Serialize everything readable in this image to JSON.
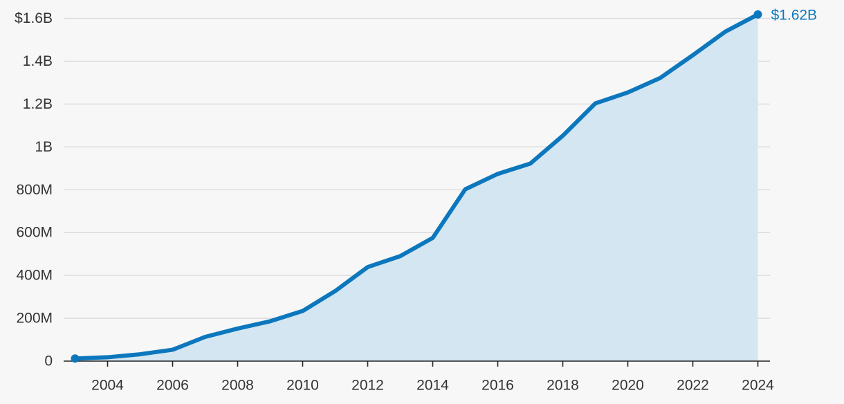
{
  "chart_data": {
    "type": "area",
    "title": "",
    "xlabel": "",
    "ylabel": "",
    "x": [
      2003,
      2004,
      2005,
      2006,
      2007,
      2008,
      2009,
      2010,
      2011,
      2012,
      2013,
      2014,
      2015,
      2016,
      2017,
      2018,
      2019,
      2020,
      2021,
      2022,
      2023,
      2024
    ],
    "series": [
      {
        "values": [
          12000000,
          18000000,
          32000000,
          53000000,
          113000000,
          152000000,
          186000000,
          234000000,
          327000000,
          439000000,
          490000000,
          575000000,
          802000000,
          874000000,
          922000000,
          1052000000,
          1203000000,
          1254000000,
          1322000000,
          1428000000,
          1538000000,
          1618000000
        ]
      }
    ],
    "xticks": [
      "2004",
      "2006",
      "2008",
      "2010",
      "2012",
      "2014",
      "2016",
      "2018",
      "2020",
      "2022",
      "2024"
    ],
    "yticks": [
      {
        "value": 0,
        "label": "0"
      },
      {
        "value": 200000000,
        "label": "200M"
      },
      {
        "value": 400000000,
        "label": "400M"
      },
      {
        "value": 600000000,
        "label": "600M"
      },
      {
        "value": 800000000,
        "label": "800M"
      },
      {
        "value": 1000000000,
        "label": "1B"
      },
      {
        "value": 1200000000,
        "label": "1.2B"
      },
      {
        "value": 1400000000,
        "label": "1.4B"
      },
      {
        "value": 1600000000,
        "label": "$1.6B"
      }
    ],
    "ylim": [
      0,
      1600000000
    ],
    "xlim": [
      2003,
      2024
    ],
    "grid": true,
    "end_label": "$1.62B",
    "colors": {
      "line": "#0c77bd",
      "fill": "#d4e6f1",
      "end_label": "#0c77bd",
      "grid": "#d9d9d9",
      "axis": "#222222",
      "background": "#f7f7f7"
    }
  }
}
